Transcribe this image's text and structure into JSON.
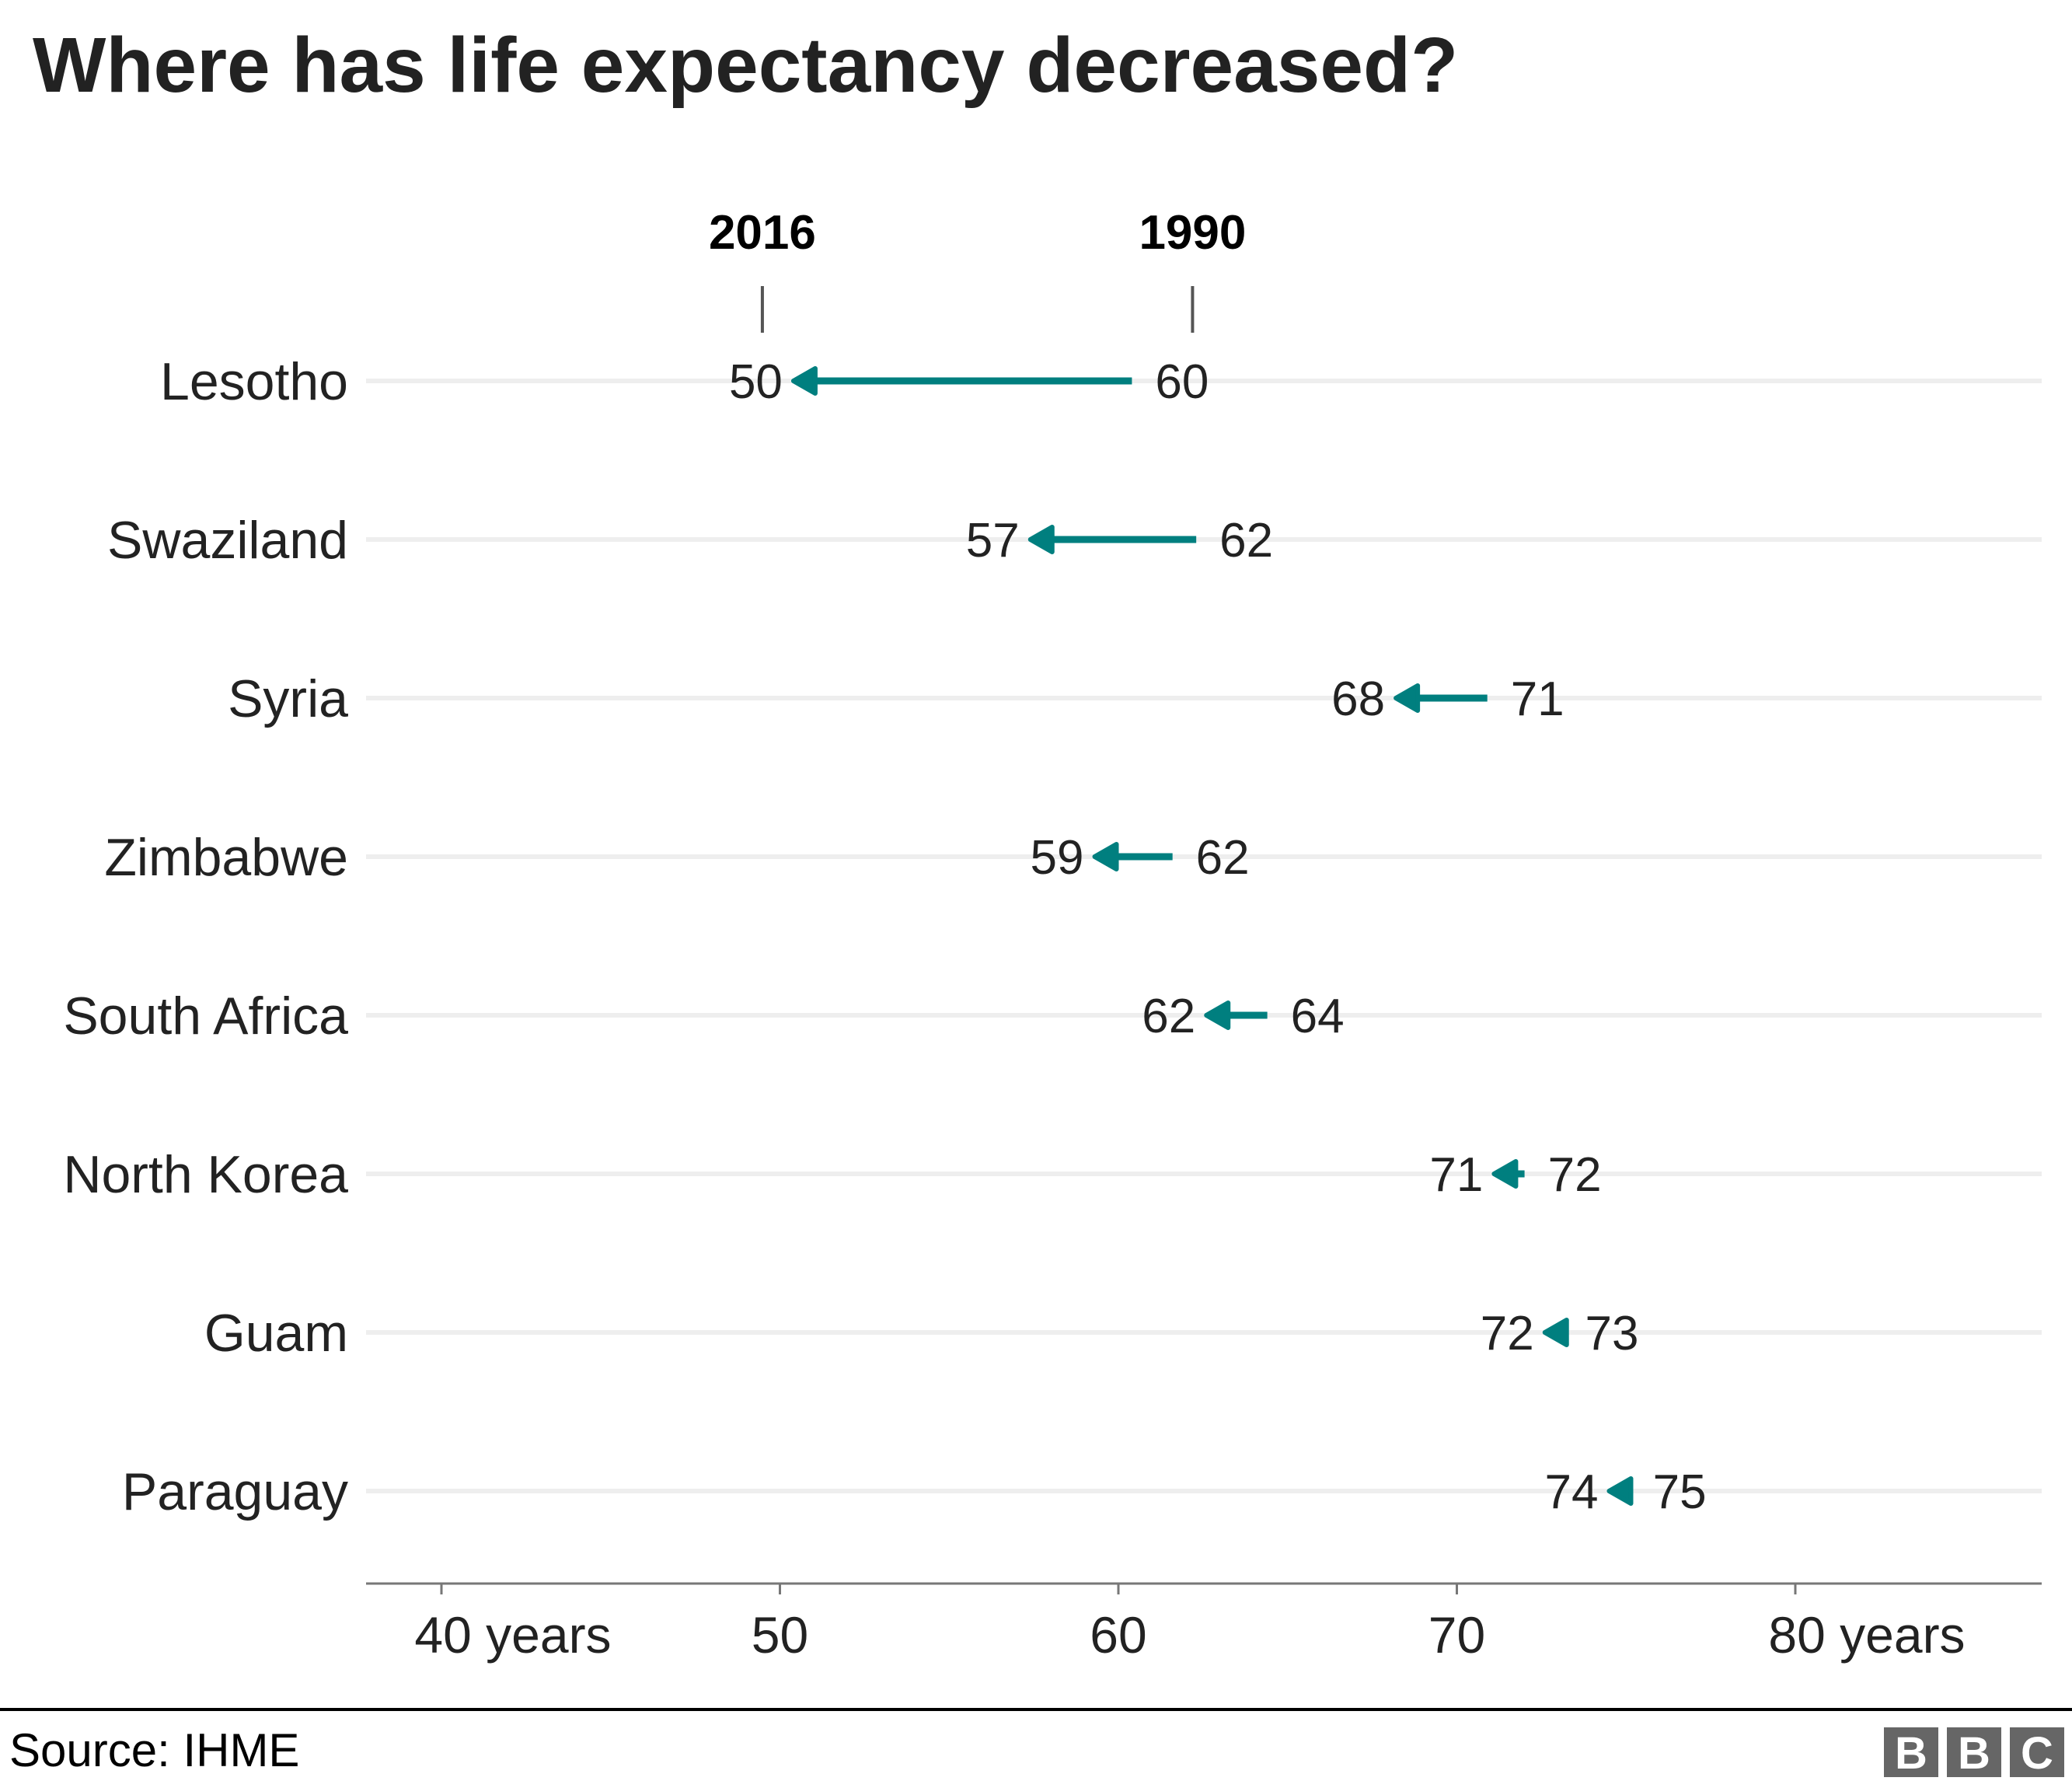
{
  "chart_data": {
    "type": "arrow-dumbbell",
    "title": "Where has life expectancy decreased?",
    "series_labels": {
      "start": "1990",
      "end": "2016"
    },
    "categories": [
      "Lesotho",
      "Swaziland",
      "Syria",
      "Zimbabwe",
      "South Africa",
      "North Korea",
      "Guam",
      "Paraguay"
    ],
    "series": [
      {
        "name": "1990",
        "values": [
          60,
          62,
          71,
          62,
          64,
          72,
          73,
          75
        ]
      },
      {
        "name": "2016",
        "values": [
          50,
          57,
          68,
          59,
          62,
          71,
          72,
          74
        ]
      }
    ],
    "plotted_values": {
      "1990": [
        60.4,
        62.3,
        70.9,
        61.6,
        64.4,
        72.0,
        73.1,
        75.1
      ],
      "2016": [
        50.4,
        57.4,
        68.2,
        59.3,
        62.6,
        71.1,
        72.6,
        74.5
      ]
    },
    "xlabel": "",
    "ylabel": "",
    "xlim": [
      37.8,
      87.4
    ],
    "xticks": [
      40,
      50,
      60,
      70,
      80
    ],
    "xtick_labels": [
      "40 years",
      "50",
      "60",
      "70",
      "80 years"
    ],
    "grid": "horizontal row lines",
    "legend": "top (year labels above first row)",
    "arrow_color": "#007F7F",
    "gridline_color": "#EEEEEE",
    "source": "Source: IHME",
    "logo": [
      "B",
      "B",
      "C"
    ]
  }
}
